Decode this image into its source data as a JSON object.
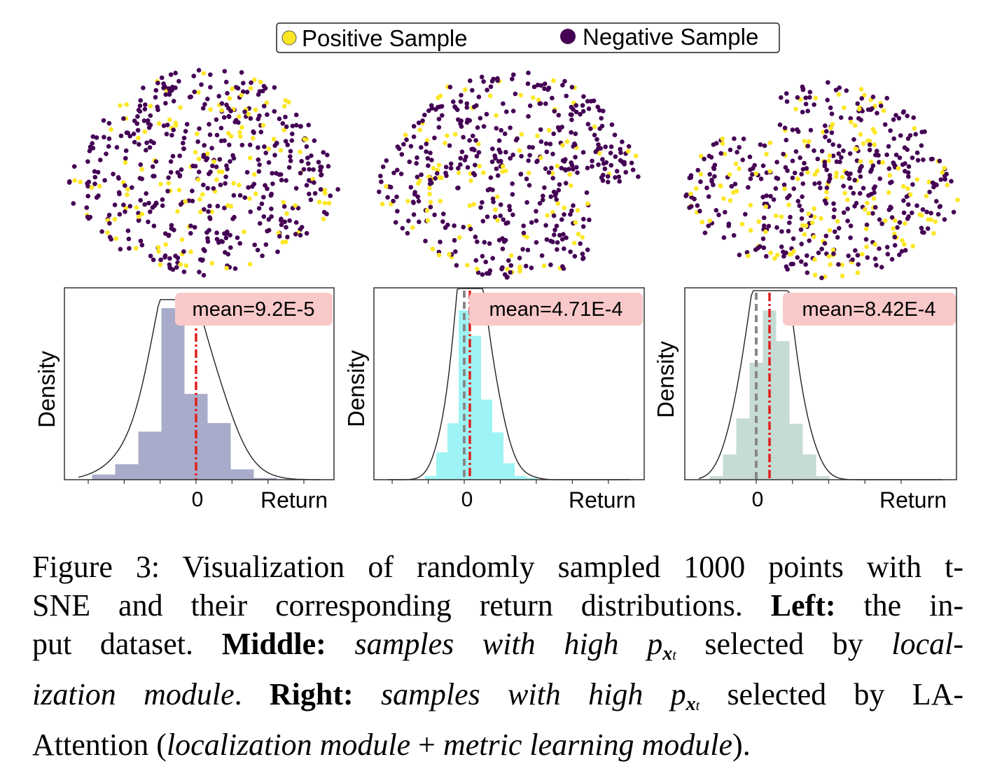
{
  "legend": {
    "positive_label": "Positive Sample",
    "negative_label": "Negative Sample",
    "positive_color": "#fde725",
    "negative_color": "#440154"
  },
  "panels": [
    {
      "id": "left",
      "hist_color": "#8b8fb8",
      "mean_label": "mean=9.2E-5",
      "ylabel": "Density",
      "xlabel": "Return",
      "zero_tick": "0"
    },
    {
      "id": "middle",
      "hist_color": "#7df0f0",
      "mean_label": "mean=4.71E-4",
      "ylabel": "Density",
      "xlabel": "Return",
      "zero_tick": "0"
    },
    {
      "id": "right",
      "hist_color": "#b2cfc4",
      "mean_label": "mean=8.42E-4",
      "ylabel": "Density",
      "xlabel": "Return",
      "zero_tick": "0"
    }
  ],
  "chart_data": [
    {
      "type": "scatter",
      "panel": "left",
      "series": [
        {
          "name": "Positive Sample",
          "color": "#fde725"
        },
        {
          "name": "Negative Sample",
          "color": "#440154"
        }
      ]
    },
    {
      "type": "scatter",
      "panel": "middle",
      "series": [
        {
          "name": "Positive Sample",
          "color": "#fde725"
        },
        {
          "name": "Negative Sample",
          "color": "#440154"
        }
      ]
    },
    {
      "type": "scatter",
      "panel": "right",
      "series": [
        {
          "name": "Positive Sample",
          "color": "#fde725"
        },
        {
          "name": "Negative Sample",
          "color": "#440154"
        }
      ]
    },
    {
      "type": "bar",
      "panel": "left",
      "xlabel": "Return",
      "ylabel": "Density",
      "x_tick_labels": [
        "0"
      ],
      "annotation": "mean=9.2E-5",
      "bin_centers": [
        -4,
        -3,
        -2,
        -1,
        0,
        1,
        2,
        3
      ],
      "values": [
        0.03,
        0.09,
        0.28,
        1.0,
        0.5,
        0.33,
        0.06,
        0.01
      ],
      "mean_line": 0
    },
    {
      "type": "bar",
      "panel": "middle",
      "xlabel": "Return",
      "ylabel": "Density",
      "x_tick_labels": [
        "0"
      ],
      "annotation": "mean=4.71E-4",
      "bin_centers": [
        -3,
        -2,
        -1,
        0,
        1,
        2,
        3,
        4,
        5,
        6
      ],
      "values": [
        0.02,
        0.15,
        0.31,
        0.93,
        0.79,
        0.44,
        0.26,
        0.09,
        0.02,
        0.01
      ],
      "mean_line": 0.5,
      "zero_line": 0
    },
    {
      "type": "bar",
      "panel": "right",
      "xlabel": "Return",
      "ylabel": "Density",
      "x_tick_labels": [
        "0"
      ],
      "annotation": "mean=8.42E-4",
      "bin_centers": [
        -3,
        -2,
        -1,
        0,
        1,
        2,
        3,
        4,
        5
      ],
      "values": [
        0.02,
        0.14,
        0.34,
        0.65,
        0.94,
        0.77,
        0.31,
        0.14,
        0.02
      ],
      "mean_line": 1,
      "zero_line": 0
    }
  ],
  "caption": {
    "label": "Figure 3:",
    "t1": "Visualization of randomly sampled 1000 points with t-",
    "t2": "SNE and their corresponding return distributions.",
    "left_label": "Left:",
    "t3": "the in-",
    "t4": "put dataset.",
    "middle_label": "Middle:",
    "t5": "samples with high",
    "p_symbol": "p",
    "p_sub": "x",
    "p_sub2": "t",
    "t6": "selected by",
    "t7": "local-",
    "t8": "ization module",
    "t9": ".",
    "right_label": "Right:",
    "t10": "samples with high",
    "t11": "selected by LA-",
    "t12": "Attention (",
    "t13": "localization module",
    "t14": " + ",
    "t15": "metric learning module",
    "t16": ")."
  }
}
